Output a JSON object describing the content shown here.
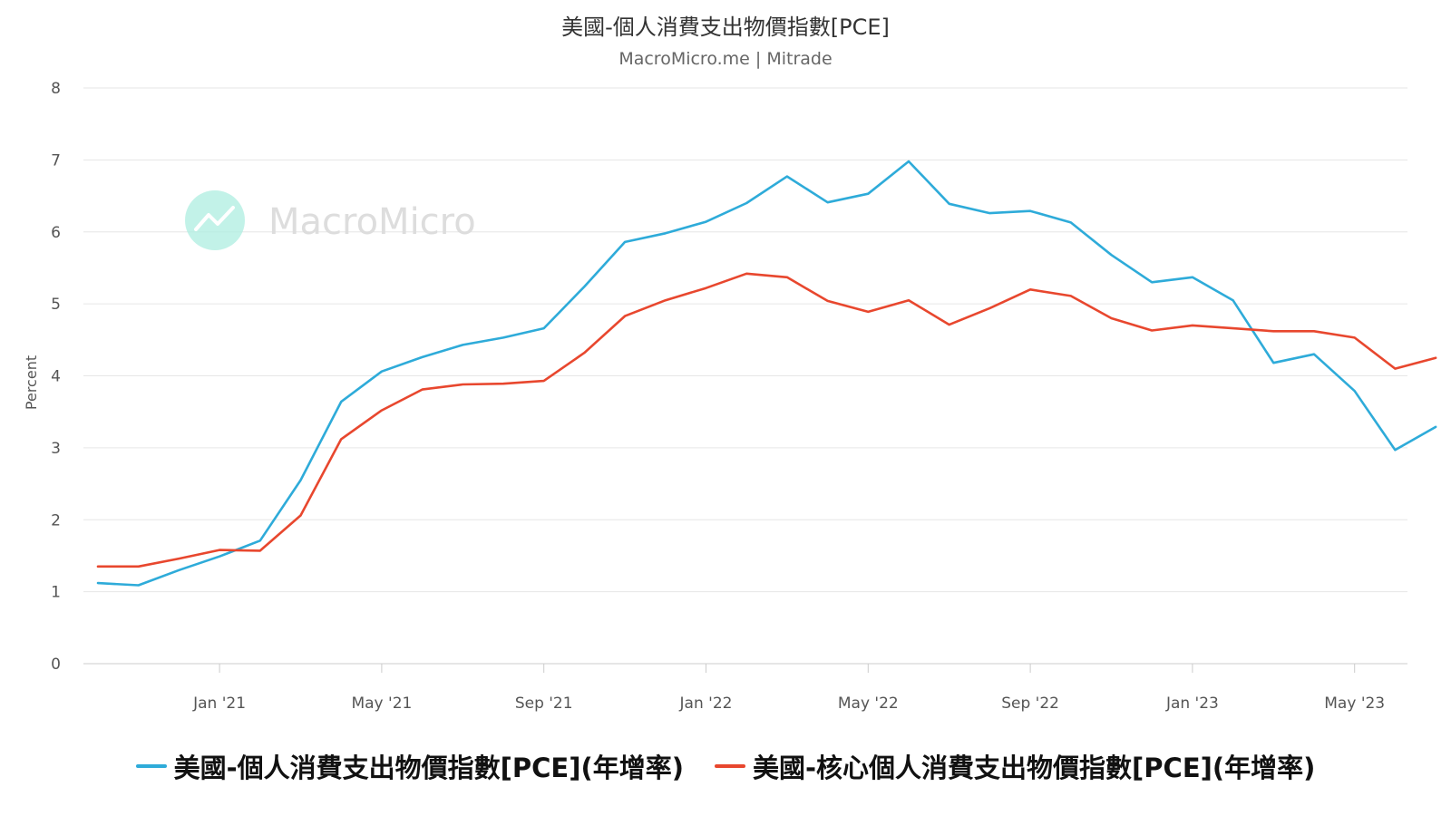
{
  "chart_data": {
    "type": "line",
    "title": "美國-個人消費支出物價指數[PCE]",
    "subtitle": "MacroMicro.me | Mitrade",
    "watermark": "MacroMicro",
    "ylabel": "Percent",
    "xlabel": "",
    "ylim": [
      0,
      8
    ],
    "yticks": [
      "0",
      "1",
      "2",
      "3",
      "4",
      "5",
      "6",
      "7",
      "8"
    ],
    "grid": true,
    "legend_position": "bottom",
    "x": [
      "2020-10",
      "2020-11",
      "2020-12",
      "2021-01",
      "2021-02",
      "2021-03",
      "2021-04",
      "2021-05",
      "2021-06",
      "2021-07",
      "2021-08",
      "2021-09",
      "2021-10",
      "2021-11",
      "2021-12",
      "2022-01",
      "2022-02",
      "2022-03",
      "2022-04",
      "2022-05",
      "2022-06",
      "2022-07",
      "2022-08",
      "2022-09",
      "2022-10",
      "2022-11",
      "2022-12",
      "2023-01",
      "2023-02",
      "2023-03",
      "2023-04",
      "2023-05",
      "2023-06",
      "2023-07"
    ],
    "xticks": [
      {
        "label": "Jan '21",
        "x": "2021-01"
      },
      {
        "label": "May '21",
        "x": "2021-05"
      },
      {
        "label": "Sep '21",
        "x": "2021-09"
      },
      {
        "label": "Jan '22",
        "x": "2022-01"
      },
      {
        "label": "May '22",
        "x": "2022-05"
      },
      {
        "label": "Sep '22",
        "x": "2022-09"
      },
      {
        "label": "Jan '23",
        "x": "2023-01"
      },
      {
        "label": "May '23",
        "x": "2023-05"
      }
    ],
    "series": [
      {
        "name": "美國-個人消費支出物價指數[PCE](年增率)",
        "color": "#2eabd9",
        "values": [
          1.12,
          1.09,
          1.3,
          1.49,
          1.71,
          2.55,
          3.64,
          4.06,
          4.26,
          4.43,
          4.53,
          4.66,
          5.24,
          5.86,
          5.98,
          6.14,
          6.4,
          6.77,
          6.41,
          6.53,
          6.98,
          6.39,
          6.26,
          6.29,
          6.13,
          5.68,
          5.3,
          5.37,
          5.05,
          4.18,
          4.3,
          3.79,
          2.97,
          3.29
        ]
      },
      {
        "name": "美國-核心個人消費支出物價指數[PCE](年增率)",
        "color": "#e8472e",
        "values": [
          1.35,
          1.35,
          1.46,
          1.58,
          1.57,
          2.06,
          3.12,
          3.52,
          3.81,
          3.88,
          3.89,
          3.93,
          4.32,
          4.83,
          5.05,
          5.22,
          5.42,
          5.37,
          5.04,
          4.89,
          5.05,
          4.71,
          4.94,
          5.2,
          5.11,
          4.8,
          4.63,
          4.7,
          4.66,
          4.62,
          4.62,
          4.53,
          4.1,
          4.25
        ]
      }
    ]
  }
}
